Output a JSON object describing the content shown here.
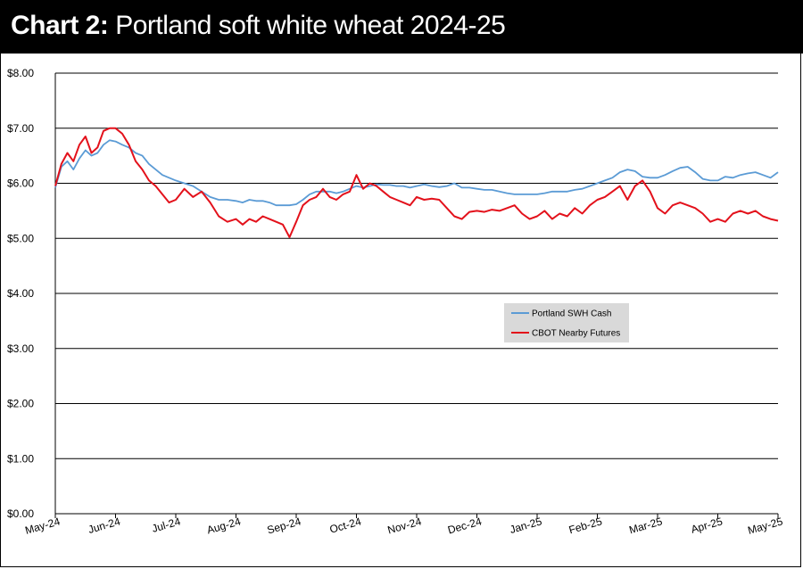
{
  "title": {
    "lead": "Chart 2:",
    "rest": "Portland soft white wheat 2024-25"
  },
  "chart_data": {
    "type": "line",
    "title": "Chart 2: Portland soft white wheat 2024-25",
    "xlabel": "",
    "ylabel": "",
    "ylim": [
      0,
      8
    ],
    "yticks": [
      0,
      1,
      2,
      3,
      4,
      5,
      6,
      7,
      8
    ],
    "ytick_labels": [
      "$0.00",
      "$1.00",
      "$2.00",
      "$3.00",
      "$4.00",
      "$5.00",
      "$6.00",
      "$7.00",
      "$8.00"
    ],
    "xticks": [
      "May-24",
      "Jun-24",
      "Jul-24",
      "Aug-24",
      "Sep-24",
      "Oct-24",
      "Nov-24",
      "Dec-24",
      "Jan-25",
      "Feb-25",
      "Mar-25",
      "Apr-25",
      "May-25"
    ],
    "grid": "horizontal",
    "legend": {
      "position": "center-right"
    },
    "colors": {
      "swh": "#5b9bd5",
      "cbot": "#e3111b"
    },
    "series": [
      {
        "name": "Portland SWH Cash",
        "color": "#5b9bd5",
        "points": [
          [
            "May-24",
            5.92
          ],
          [
            "May-24",
            6.3
          ],
          [
            "May-24",
            6.4
          ],
          [
            "May-24",
            6.25
          ],
          [
            "May-24",
            6.45
          ],
          [
            "May-24",
            6.6
          ],
          [
            "May-24",
            6.5
          ],
          [
            "May-24",
            6.55
          ],
          [
            "May-24",
            6.7
          ],
          [
            "May-24",
            6.78
          ],
          [
            "Jun-24",
            6.76
          ],
          [
            "Jun-24",
            6.7
          ],
          [
            "Jun-24",
            6.65
          ],
          [
            "Jun-24",
            6.55
          ],
          [
            "Jun-24",
            6.5
          ],
          [
            "Jun-24",
            6.35
          ],
          [
            "Jun-24",
            6.25
          ],
          [
            "Jun-24",
            6.15
          ],
          [
            "Jun-24",
            6.1
          ],
          [
            "Jul-24",
            6.05
          ],
          [
            "Jul-24",
            6.0
          ],
          [
            "Jul-24",
            5.95
          ],
          [
            "Jul-24",
            5.85
          ],
          [
            "Jul-24",
            5.75
          ],
          [
            "Jul-24",
            5.7
          ],
          [
            "Jul-24",
            5.7
          ],
          [
            "Aug-24",
            5.68
          ],
          [
            "Aug-24",
            5.65
          ],
          [
            "Aug-24",
            5.7
          ],
          [
            "Aug-24",
            5.68
          ],
          [
            "Aug-24",
            5.68
          ],
          [
            "Aug-24",
            5.65
          ],
          [
            "Aug-24",
            5.6
          ],
          [
            "Aug-24",
            5.6
          ],
          [
            "Aug-24",
            5.6
          ],
          [
            "Sep-24",
            5.62
          ],
          [
            "Sep-24",
            5.7
          ],
          [
            "Sep-24",
            5.8
          ],
          [
            "Sep-24",
            5.85
          ],
          [
            "Sep-24",
            5.85
          ],
          [
            "Sep-24",
            5.85
          ],
          [
            "Sep-24",
            5.82
          ],
          [
            "Sep-24",
            5.85
          ],
          [
            "Sep-24",
            5.9
          ],
          [
            "Oct-24",
            5.95
          ],
          [
            "Oct-24",
            5.92
          ],
          [
            "Oct-24",
            5.95
          ],
          [
            "Oct-24",
            5.98
          ],
          [
            "Oct-24",
            5.97
          ],
          [
            "Oct-24",
            5.97
          ],
          [
            "Oct-24",
            5.95
          ],
          [
            "Oct-24",
            5.95
          ],
          [
            "Oct-24",
            5.92
          ],
          [
            "Nov-24",
            5.95
          ],
          [
            "Nov-24",
            5.98
          ],
          [
            "Nov-24",
            5.95
          ],
          [
            "Nov-24",
            5.93
          ],
          [
            "Nov-24",
            5.95
          ],
          [
            "Nov-24",
            6.0
          ],
          [
            "Nov-24",
            5.92
          ],
          [
            "Nov-24",
            5.92
          ],
          [
            "Dec-24",
            5.9
          ],
          [
            "Dec-24",
            5.88
          ],
          [
            "Dec-24",
            5.88
          ],
          [
            "Dec-24",
            5.85
          ],
          [
            "Dec-24",
            5.82
          ],
          [
            "Dec-24",
            5.8
          ],
          [
            "Dec-24",
            5.8
          ],
          [
            "Dec-24",
            5.8
          ],
          [
            "Jan-25",
            5.8
          ],
          [
            "Jan-25",
            5.82
          ],
          [
            "Jan-25",
            5.85
          ],
          [
            "Jan-25",
            5.85
          ],
          [
            "Jan-25",
            5.85
          ],
          [
            "Jan-25",
            5.88
          ],
          [
            "Jan-25",
            5.9
          ],
          [
            "Jan-25",
            5.95
          ],
          [
            "Feb-25",
            6.0
          ],
          [
            "Feb-25",
            6.05
          ],
          [
            "Feb-25",
            6.1
          ],
          [
            "Feb-25",
            6.2
          ],
          [
            "Feb-25",
            6.25
          ],
          [
            "Feb-25",
            6.22
          ],
          [
            "Feb-25",
            6.12
          ],
          [
            "Feb-25",
            6.1
          ],
          [
            "Mar-25",
            6.1
          ],
          [
            "Mar-25",
            6.15
          ],
          [
            "Mar-25",
            6.22
          ],
          [
            "Mar-25",
            6.28
          ],
          [
            "Mar-25",
            6.3
          ],
          [
            "Mar-25",
            6.2
          ],
          [
            "Mar-25",
            6.08
          ],
          [
            "Mar-25",
            6.05
          ],
          [
            "Apr-25",
            6.05
          ],
          [
            "Apr-25",
            6.12
          ],
          [
            "Apr-25",
            6.1
          ],
          [
            "Apr-25",
            6.15
          ],
          [
            "Apr-25",
            6.18
          ],
          [
            "Apr-25",
            6.2
          ],
          [
            "Apr-25",
            6.15
          ],
          [
            "Apr-25",
            6.1
          ],
          [
            "May-25",
            6.2
          ]
        ]
      },
      {
        "name": "CBOT Nearby Futures",
        "color": "#e3111b",
        "points": [
          [
            "May-24",
            5.95
          ],
          [
            "May-24",
            6.35
          ],
          [
            "May-24",
            6.55
          ],
          [
            "May-24",
            6.4
          ],
          [
            "May-24",
            6.7
          ],
          [
            "May-24",
            6.85
          ],
          [
            "May-24",
            6.55
          ],
          [
            "May-24",
            6.65
          ],
          [
            "May-24",
            6.95
          ],
          [
            "May-24",
            7.0
          ],
          [
            "Jun-24",
            7.0
          ],
          [
            "Jun-24",
            6.9
          ],
          [
            "Jun-24",
            6.7
          ],
          [
            "Jun-24",
            6.4
          ],
          [
            "Jun-24",
            6.25
          ],
          [
            "Jun-24",
            6.05
          ],
          [
            "Jun-24",
            5.95
          ],
          [
            "Jun-24",
            5.8
          ],
          [
            "Jun-24",
            5.65
          ],
          [
            "Jul-24",
            5.7
          ],
          [
            "Jul-24",
            5.9
          ],
          [
            "Jul-24",
            5.75
          ],
          [
            "Jul-24",
            5.85
          ],
          [
            "Jul-24",
            5.65
          ],
          [
            "Jul-24",
            5.4
          ],
          [
            "Jul-24",
            5.3
          ],
          [
            "Aug-24",
            5.35
          ],
          [
            "Aug-24",
            5.25
          ],
          [
            "Aug-24",
            5.35
          ],
          [
            "Aug-24",
            5.3
          ],
          [
            "Aug-24",
            5.4
          ],
          [
            "Aug-24",
            5.35
          ],
          [
            "Aug-24",
            5.3
          ],
          [
            "Aug-24",
            5.25
          ],
          [
            "Aug-24",
            5.02
          ],
          [
            "Sep-24",
            5.3
          ],
          [
            "Sep-24",
            5.6
          ],
          [
            "Sep-24",
            5.7
          ],
          [
            "Sep-24",
            5.75
          ],
          [
            "Sep-24",
            5.9
          ],
          [
            "Sep-24",
            5.75
          ],
          [
            "Sep-24",
            5.7
          ],
          [
            "Sep-24",
            5.8
          ],
          [
            "Sep-24",
            5.85
          ],
          [
            "Oct-24",
            6.15
          ],
          [
            "Oct-24",
            5.9
          ],
          [
            "Oct-24",
            6.0
          ],
          [
            "Oct-24",
            5.95
          ],
          [
            "Oct-24",
            5.85
          ],
          [
            "Oct-24",
            5.75
          ],
          [
            "Oct-24",
            5.7
          ],
          [
            "Oct-24",
            5.65
          ],
          [
            "Oct-24",
            5.6
          ],
          [
            "Nov-24",
            5.75
          ],
          [
            "Nov-24",
            5.7
          ],
          [
            "Nov-24",
            5.72
          ],
          [
            "Nov-24",
            5.7
          ],
          [
            "Nov-24",
            5.55
          ],
          [
            "Nov-24",
            5.4
          ],
          [
            "Nov-24",
            5.35
          ],
          [
            "Nov-24",
            5.48
          ],
          [
            "Dec-24",
            5.5
          ],
          [
            "Dec-24",
            5.48
          ],
          [
            "Dec-24",
            5.52
          ],
          [
            "Dec-24",
            5.5
          ],
          [
            "Dec-24",
            5.55
          ],
          [
            "Dec-24",
            5.6
          ],
          [
            "Dec-24",
            5.45
          ],
          [
            "Dec-24",
            5.35
          ],
          [
            "Jan-25",
            5.4
          ],
          [
            "Jan-25",
            5.5
          ],
          [
            "Jan-25",
            5.35
          ],
          [
            "Jan-25",
            5.45
          ],
          [
            "Jan-25",
            5.4
          ],
          [
            "Jan-25",
            5.55
          ],
          [
            "Jan-25",
            5.45
          ],
          [
            "Jan-25",
            5.6
          ],
          [
            "Feb-25",
            5.7
          ],
          [
            "Feb-25",
            5.75
          ],
          [
            "Feb-25",
            5.85
          ],
          [
            "Feb-25",
            5.95
          ],
          [
            "Feb-25",
            5.7
          ],
          [
            "Feb-25",
            5.95
          ],
          [
            "Feb-25",
            6.05
          ],
          [
            "Feb-25",
            5.85
          ],
          [
            "Mar-25",
            5.55
          ],
          [
            "Mar-25",
            5.45
          ],
          [
            "Mar-25",
            5.6
          ],
          [
            "Mar-25",
            5.65
          ],
          [
            "Mar-25",
            5.6
          ],
          [
            "Mar-25",
            5.55
          ],
          [
            "Mar-25",
            5.45
          ],
          [
            "Mar-25",
            5.3
          ],
          [
            "Apr-25",
            5.35
          ],
          [
            "Apr-25",
            5.3
          ],
          [
            "Apr-25",
            5.45
          ],
          [
            "Apr-25",
            5.5
          ],
          [
            "Apr-25",
            5.45
          ],
          [
            "Apr-25",
            5.5
          ],
          [
            "Apr-25",
            5.4
          ],
          [
            "Apr-25",
            5.35
          ],
          [
            "May-25",
            5.32
          ]
        ]
      }
    ]
  }
}
